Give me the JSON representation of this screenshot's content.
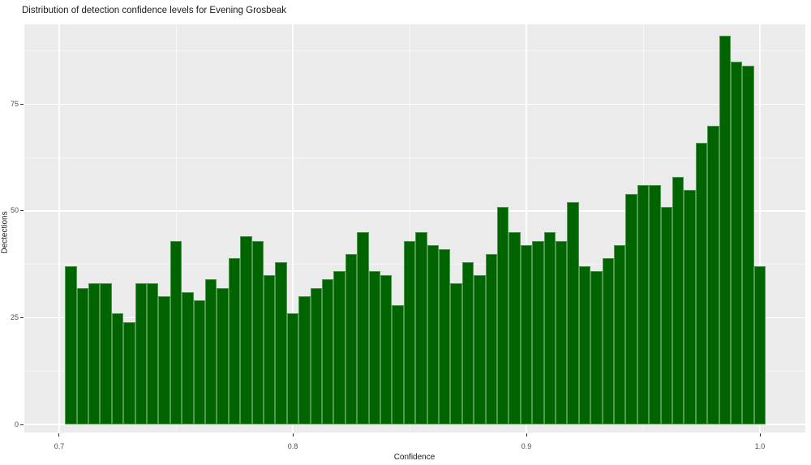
{
  "title": "Distribution of detection confidence levels for Evening Grosbeak",
  "chart_data": {
    "type": "bar",
    "subtype": "histogram",
    "title": "Distribution of detection confidence levels for Evening Grosbeak",
    "xlabel": "Confidence",
    "ylabel": "Dectections",
    "bin_start": 0.7025,
    "bin_width": 0.005,
    "values": [
      37,
      32,
      33,
      33,
      26,
      24,
      33,
      33,
      30,
      43,
      31,
      29,
      34,
      32,
      39,
      44,
      43,
      35,
      38,
      26,
      30,
      32,
      34,
      36,
      40,
      45,
      36,
      35,
      28,
      43,
      45,
      42,
      41,
      33,
      38,
      35,
      40,
      51,
      45,
      42,
      43,
      45,
      43,
      52,
      37,
      36,
      39,
      42,
      54,
      56,
      56,
      51,
      58,
      55,
      66,
      70,
      91,
      85,
      84,
      37
    ],
    "x_ticks": [
      0.7,
      0.8,
      0.9,
      1.0
    ],
    "x_tick_labels": [
      "0.7",
      "0.8",
      "0.9",
      "1.0"
    ],
    "x_minor_ticks": [
      0.75,
      0.85,
      0.95
    ],
    "y_ticks": [
      0,
      25,
      50,
      75
    ],
    "y_tick_labels": [
      "0",
      "25",
      "50",
      "75"
    ],
    "y_minor_ticks": [
      12.5,
      37.5,
      62.5,
      87.5
    ],
    "xlim": [
      0.68507,
      1.01944
    ],
    "ylim": [
      -1.9,
      93.7
    ],
    "grid": true,
    "legend": "none",
    "colors": {
      "bar_fill": "#006400",
      "bar_border": "#519951",
      "panel_background": "#ebebeb",
      "grid_major": "#ffffff",
      "tick_text": "#4d4d4d",
      "title_text": "#1a1a1a"
    }
  }
}
